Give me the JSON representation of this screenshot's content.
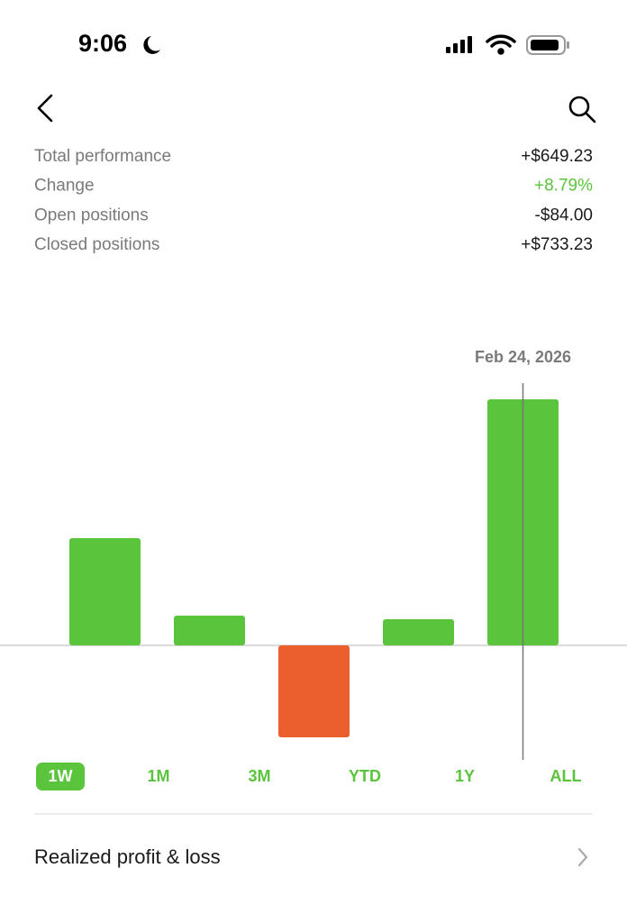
{
  "status_bar": {
    "time": "9:06"
  },
  "summary": {
    "rows": [
      {
        "label": "Total performance",
        "value": "+$649.23"
      },
      {
        "label": "Change",
        "value": "+8.79%"
      },
      {
        "label": "Open positions",
        "value": "-$84.00"
      },
      {
        "label": "Closed positions",
        "value": "+$733.23"
      }
    ]
  },
  "chart_data": {
    "type": "bar",
    "categories": [
      null,
      null,
      null,
      null,
      null
    ],
    "values": [
      119,
      33,
      -102,
      29,
      273
    ],
    "color": "#5ac43c",
    "negative_color": "#eb5f2e",
    "ylim": [
      -130,
      300
    ],
    "annotation": "Feb 24, 2026"
  },
  "range_tabs": {
    "options": [
      "1W",
      "1M",
      "3M",
      "YTD",
      "1Y",
      "ALL"
    ],
    "selected": 0
  },
  "links": [
    {
      "label": "Realized profit & loss"
    }
  ]
}
